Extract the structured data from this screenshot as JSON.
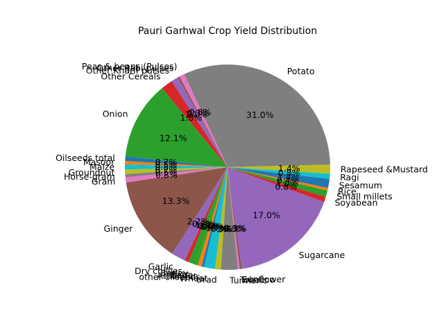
{
  "chart_data": {
    "type": "pie",
    "title": "Pauri Garhwal Crop Yield Distribution",
    "start_angle": 115,
    "direction": "clockwise",
    "slices": [
      {
        "label": "Potato",
        "value": 31.0,
        "pct_label": "31.0%",
        "color": "#7f7f7f"
      },
      {
        "label": "Rapeseed &Mustard",
        "value": 1.4,
        "pct_label": "1.4%",
        "color": "#bcbd22"
      },
      {
        "label": "Ragi",
        "value": 0.8,
        "pct_label": "0.8%",
        "color": "#17becf"
      },
      {
        "label": "Sesamum",
        "value": 1.4,
        "pct_label": "1.4%",
        "color": "#1f77b4"
      },
      {
        "label": "Rice",
        "value": 0.4,
        "pct_label": "0.4%",
        "color": "#ff7f0e"
      },
      {
        "label": "Small millets",
        "value": 1.0,
        "pct_label": "1.0%",
        "color": "#2ca02c"
      },
      {
        "label": "Soyabean",
        "value": 0.8,
        "pct_label": "0.8%",
        "color": "#d62728"
      },
      {
        "label": "Sugarcane",
        "value": 17.0,
        "pct_label": "17.0%",
        "color": "#9467bd"
      },
      {
        "label": "Sunflower",
        "value": 0.3,
        "pct_label": "0.3%",
        "color": "#8c564b"
      },
      {
        "label": "Tobacco",
        "value": 0.3,
        "pct_label": "0.3%",
        "color": "#e377c2"
      },
      {
        "label": "Turmeric",
        "value": 2.6,
        "pct_label": "2.6%",
        "color": "#7f7f7f"
      },
      {
        "label": "Urad",
        "value": 0.9,
        "pct_label": "0.9%",
        "color": "#bcbd22"
      },
      {
        "label": "Wheat",
        "value": 1.7,
        "pct_label": "1.7%",
        "color": "#17becf"
      },
      {
        "label": "other oilseeds",
        "value": 0.4,
        "pct_label": "0.4%",
        "color": "#1f77b4"
      },
      {
        "label": "Arhar/Tur",
        "value": 0.6,
        "pct_label": "0.6%",
        "color": "#ff7f0e"
      },
      {
        "label": "Bajra",
        "value": 0.4,
        "pct_label": "0.4%",
        "color": "#2ca02c"
      },
      {
        "label": "Barley",
        "value": 1.1,
        "pct_label": "1.1%",
        "color": "#2ca02c"
      },
      {
        "label": "Dry chillies",
        "value": 0.6,
        "pct_label": "0.6%",
        "color": "#d62728"
      },
      {
        "label": "Garlic",
        "value": 2.2,
        "pct_label": "2.2%",
        "color": "#9467bd"
      },
      {
        "label": "Ginger",
        "value": 13.3,
        "pct_label": "13.3%",
        "color": "#8c564b"
      },
      {
        "label": "Gram",
        "value": 0.8,
        "pct_label": "0.8%",
        "color": "#e377c2"
      },
      {
        "label": "Horse-gram",
        "value": 0.5,
        "pct_label": "0.5%",
        "color": "#7f7f7f"
      },
      {
        "label": "Groundnut",
        "value": 0.7,
        "pct_label": "0.7%",
        "color": "#bcbd22"
      },
      {
        "label": "Maize",
        "value": 0.8,
        "pct_label": "0.8%",
        "color": "#17becf"
      },
      {
        "label": "Masoor",
        "value": 0.5,
        "pct_label": "0.5%",
        "color": "#ff7f0e"
      },
      {
        "label": "Oilseeds total",
        "value": 0.7,
        "pct_label": "0.7%",
        "color": "#1f77b4"
      },
      {
        "label": "Onion",
        "value": 12.1,
        "pct_label": "12.1%",
        "color": "#2ca02c"
      },
      {
        "label": "Other Cereals",
        "value": 1.8,
        "pct_label": "1.8%",
        "color": "#d62728"
      },
      {
        "label": "Other Kharif pulses",
        "value": 1.1,
        "pct_label": "1.1%",
        "color": "#9467bd"
      },
      {
        "label": "Other Rabi pulses",
        "value": 0.3,
        "pct_label": "0.3%",
        "color": "#8c564b"
      },
      {
        "label": "Peas & beans (Pulses)",
        "value": 0.8,
        "pct_label": "0.8%",
        "color": "#e377c2"
      }
    ]
  }
}
